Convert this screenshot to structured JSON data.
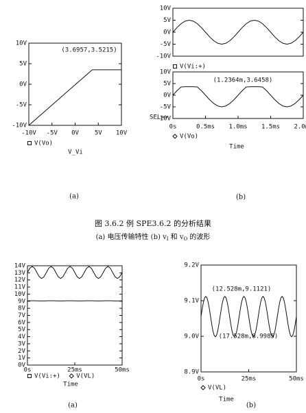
{
  "chart_data": [
    {
      "type": "line",
      "xlabel": "V_Vi",
      "x": [
        -10,
        3.6957,
        10
      ],
      "series": [
        {
          "name": "V(Vo)",
          "color": "#111111",
          "marker": "square",
          "values": [
            -10,
            3.5215,
            3.5215
          ]
        }
      ],
      "xlim": [
        -10,
        10
      ],
      "ylim": [
        -10,
        10
      ],
      "xticks": [
        {
          "value": -10,
          "label": "-10V"
        },
        {
          "value": -5,
          "label": "-5V"
        },
        {
          "value": 0,
          "label": "0V"
        },
        {
          "value": 5,
          "label": "5V"
        },
        {
          "value": 10,
          "label": "10V"
        }
      ],
      "yticks": [
        {
          "value": -10,
          "label": "-10V"
        },
        {
          "value": -5,
          "label": "-5V"
        },
        {
          "value": 0,
          "label": "0V"
        },
        {
          "value": 5,
          "label": "5V"
        },
        {
          "value": 10,
          "label": "10V"
        }
      ],
      "annotations": [
        "(3.6957,3.5215)"
      ]
    },
    {
      "type": "line",
      "x": [
        0,
        0.0625,
        0.125,
        0.1875,
        0.25,
        0.3125,
        0.375,
        0.4375,
        0.5,
        0.5625,
        0.625,
        0.6875,
        0.75,
        0.8125,
        0.875,
        0.9375,
        1,
        1.0625,
        1.125,
        1.1875,
        1.25,
        1.3125,
        1.375,
        1.4375,
        1.5,
        1.5625,
        1.625,
        1.6875,
        1.75,
        1.8125,
        1.875,
        1.9375,
        2
      ],
      "series": [
        {
          "name": "V(Vi:+)",
          "color": "#111111",
          "marker": "square",
          "values": [
            0,
            1.913,
            3.536,
            4.619,
            5,
            4.619,
            3.536,
            1.913,
            0,
            -1.913,
            -3.536,
            -4.619,
            -5,
            -4.619,
            -3.536,
            -1.913,
            0,
            1.913,
            3.536,
            4.619,
            5,
            4.619,
            3.536,
            1.913,
            0,
            -1.913,
            -3.536,
            -4.619,
            -5,
            -4.619,
            -3.536,
            -1.913,
            0
          ]
        }
      ],
      "xlim": [
        0,
        2
      ],
      "ylim": [
        -10,
        10
      ],
      "yticks": [
        {
          "value": -10,
          "label": "-10V"
        },
        {
          "value": -5,
          "label": "-5V"
        },
        {
          "value": 0,
          "label": "0V"
        },
        {
          "value": 5,
          "label": "5V"
        },
        {
          "value": 10,
          "label": "10V"
        }
      ]
    },
    {
      "type": "line",
      "xlabel": "Time",
      "cursor_label": "SEL>>",
      "x": [
        0,
        0.0625,
        0.125,
        0.1875,
        0.25,
        0.3125,
        0.375,
        0.4375,
        0.5,
        0.5625,
        0.625,
        0.6875,
        0.75,
        0.8125,
        0.875,
        0.9375,
        1,
        1.0625,
        1.125,
        1.1875,
        1.25,
        1.3125,
        1.375,
        1.4375,
        1.5,
        1.5625,
        1.625,
        1.6875,
        1.75,
        1.8125,
        1.875,
        1.9375,
        2
      ],
      "series": [
        {
          "name": "V(Vo)",
          "color": "#111111",
          "marker": "diamond",
          "values": [
            0,
            1.913,
            3.536,
            3.6458,
            3.6458,
            3.6458,
            3.536,
            1.913,
            0,
            -1.913,
            -3.536,
            -4.619,
            -5,
            -4.619,
            -3.536,
            -1.913,
            0,
            1.913,
            3.536,
            3.6458,
            3.6458,
            3.6458,
            3.536,
            1.913,
            0,
            -1.913,
            -3.536,
            -4.619,
            -5,
            -4.619,
            -3.536,
            -1.913,
            0
          ]
        }
      ],
      "xlim": [
        0,
        2
      ],
      "ylim": [
        -10,
        10
      ],
      "xticks": [
        {
          "value": 0,
          "label": "0s"
        },
        {
          "value": 0.5,
          "label": "0.5ms"
        },
        {
          "value": 1,
          "label": "1.0ms"
        },
        {
          "value": 1.5,
          "label": "1.5ms"
        },
        {
          "value": 2,
          "label": "2.0ms"
        }
      ],
      "yticks": [
        {
          "value": -10,
          "label": "-10V"
        },
        {
          "value": -5,
          "label": "-5V"
        },
        {
          "value": 0,
          "label": "0V"
        },
        {
          "value": 5,
          "label": "5V"
        },
        {
          "value": 10,
          "label": "10V"
        }
      ],
      "annotations": [
        "(1.2364m,3.6458)"
      ]
    },
    {
      "type": "line",
      "xlabel": "Time",
      "x": [
        0,
        1.25,
        2.5,
        3.75,
        5,
        6.25,
        7.5,
        8.75,
        10,
        11.25,
        12.5,
        13.75,
        15,
        16.25,
        17.5,
        18.75,
        20,
        21.25,
        22.5,
        23.75,
        25,
        26.25,
        27.5,
        28.75,
        30,
        31.25,
        32.5,
        33.75,
        35,
        36.25,
        37.5,
        38.75,
        40,
        41.25,
        42.5,
        43.75,
        45,
        46.25,
        47.5,
        48.75,
        50
      ],
      "series": [
        {
          "name": "V(Vi:+)",
          "color": "#111111",
          "marker": "square",
          "values": [
            13.05,
            13.65,
            13.9,
            13.65,
            13.05,
            12.45,
            12.2,
            12.45,
            13.05,
            13.65,
            13.9,
            13.65,
            13.05,
            12.45,
            12.2,
            12.45,
            13.05,
            13.65,
            13.9,
            13.65,
            13.05,
            12.45,
            12.2,
            12.45,
            13.05,
            13.65,
            13.9,
            13.65,
            13.05,
            12.45,
            12.2,
            12.45,
            13.05,
            13.65,
            13.9,
            13.65,
            13.05,
            12.45,
            12.2,
            12.45,
            13.05
          ]
        },
        {
          "name": "V(VL)",
          "color": "#111111",
          "marker": "diamond",
          "values": [
            9.05,
            9.06,
            9.06,
            9.06,
            9.05,
            9.04,
            9.04,
            9.04,
            9.05,
            9.06,
            9.06,
            9.06,
            9.05,
            9.04,
            9.04,
            9.04,
            9.05,
            9.06,
            9.06,
            9.06,
            9.05,
            9.04,
            9.04,
            9.04,
            9.05,
            9.06,
            9.06,
            9.06,
            9.05,
            9.04,
            9.04,
            9.04,
            9.05,
            9.06,
            9.06,
            9.06,
            9.05,
            9.04,
            9.04,
            9.04,
            9.05
          ]
        }
      ],
      "xlim": [
        0,
        50
      ],
      "ylim": [
        0,
        14
      ],
      "xticks": [
        {
          "value": 0,
          "label": "0s"
        },
        {
          "value": 25,
          "label": "25ms"
        },
        {
          "value": 50,
          "label": "50ms"
        }
      ],
      "yticks": [
        {
          "value": 0,
          "label": "0V"
        },
        {
          "value": 1,
          "label": "1V"
        },
        {
          "value": 2,
          "label": "2V"
        },
        {
          "value": 3,
          "label": "3V"
        },
        {
          "value": 4,
          "label": "4V"
        },
        {
          "value": 5,
          "label": "5V"
        },
        {
          "value": 6,
          "label": "6V"
        },
        {
          "value": 7,
          "label": "7V"
        },
        {
          "value": 8,
          "label": "8V"
        },
        {
          "value": 9,
          "label": "9V"
        },
        {
          "value": 10,
          "label": "10V"
        },
        {
          "value": 11,
          "label": "11V"
        },
        {
          "value": 12,
          "label": "12V"
        },
        {
          "value": 13,
          "label": "13V"
        },
        {
          "value": 14,
          "label": "14V"
        }
      ]
    },
    {
      "type": "line",
      "xlabel": "Time",
      "x": [
        0,
        0.625,
        1.25,
        1.875,
        2.5,
        3.125,
        3.75,
        4.375,
        5,
        5.625,
        6.25,
        6.875,
        7.5,
        8.125,
        8.75,
        9.375,
        10,
        10.625,
        11.25,
        11.875,
        12.5,
        13.125,
        13.75,
        14.375,
        15,
        15.625,
        16.25,
        16.875,
        17.5,
        18.125,
        18.75,
        19.375,
        20,
        20.625,
        21.25,
        21.875,
        22.5,
        23.125,
        23.75,
        24.375,
        25,
        25.625,
        26.25,
        26.875,
        27.5,
        28.125,
        28.75,
        29.375,
        30,
        30.625,
        31.25,
        31.875,
        32.5,
        33.125,
        33.75,
        34.375,
        35,
        35.625,
        36.25,
        36.875,
        37.5,
        38.125,
        38.75,
        39.375,
        40,
        40.625,
        41.25,
        41.875,
        42.5,
        43.125,
        43.75,
        44.375,
        45,
        45.625,
        46.25,
        46.875,
        47.5,
        48.125,
        48.75,
        49.375,
        50
      ],
      "series": [
        {
          "name": "V(VL)",
          "color": "#111111",
          "marker": "diamond",
          "values": [
            9.0553,
            9.077,
            9.0955,
            9.1078,
            9.1121,
            9.1078,
            9.0955,
            9.077,
            9.0553,
            9.0336,
            9.0151,
            9.0028,
            8.9985,
            9.0028,
            9.0151,
            9.0336,
            9.0553,
            9.077,
            9.0955,
            9.1078,
            9.1121,
            9.1078,
            9.0955,
            9.077,
            9.0553,
            9.0336,
            9.0151,
            9.0028,
            8.9985,
            9.0028,
            9.0151,
            9.0336,
            9.0553,
            9.077,
            9.0955,
            9.1078,
            9.1121,
            9.1078,
            9.0955,
            9.077,
            9.0553,
            9.0336,
            9.0151,
            9.0028,
            8.9985,
            9.0028,
            9.0151,
            9.0336,
            9.0553,
            9.077,
            9.0955,
            9.1078,
            9.1121,
            9.1078,
            9.0955,
            9.077,
            9.0553,
            9.0336,
            9.0151,
            9.0028,
            8.9985,
            9.0028,
            9.0151,
            9.0336,
            9.0553,
            9.077,
            9.0955,
            9.1078,
            9.1121,
            9.1078,
            9.0955,
            9.077,
            9.0553,
            9.0336,
            9.0151,
            9.0028,
            8.9985,
            9.0028,
            9.0151,
            9.0336,
            9.0553
          ]
        }
      ],
      "xlim": [
        0,
        50
      ],
      "ylim": [
        8.9,
        9.2
      ],
      "xticks": [
        {
          "value": 0,
          "label": "0s"
        },
        {
          "value": 25,
          "label": "25ms"
        },
        {
          "value": 50,
          "label": "50ms"
        }
      ],
      "yticks": [
        {
          "value": 8.9,
          "label": "8.9V"
        },
        {
          "value": 9,
          "label": "9.0V"
        },
        {
          "value": 9.1,
          "label": "9.1V"
        },
        {
          "value": 9.2,
          "label": "9.2V"
        }
      ],
      "annotations": [
        "(12.528m,9.1121)",
        "(17.528m,8.9985)"
      ]
    }
  ],
  "figure_caption": "图 3.6.2  例 SPE3.6.2 的分析结果",
  "figure_subcaption": [
    "(a) 电压传输特性  (b) v",
    "I",
    " 和 v",
    "O",
    " 的波形"
  ],
  "panel_labels": [
    "(a)",
    "(b)",
    "(a)",
    "(b)"
  ]
}
